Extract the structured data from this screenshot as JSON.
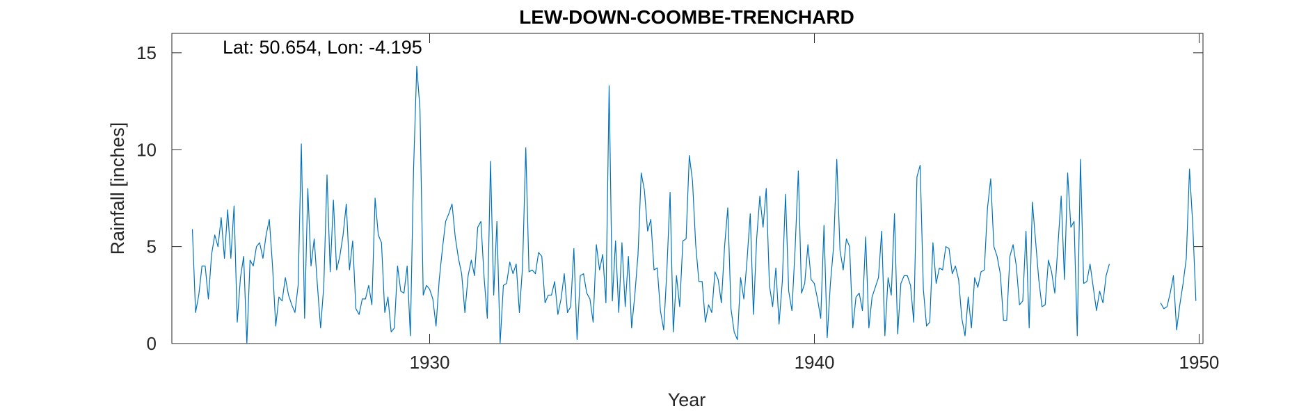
{
  "chart_data": {
    "type": "line",
    "title": "LEW-DOWN-COOMBE-TRENCHARD",
    "xlabel": "Year",
    "ylabel": "Rainfall [inches]",
    "annotation": "Lat: 50.654, Lon: -4.195",
    "xlim": [
      1923.3,
      1950.1
    ],
    "ylim": [
      0,
      16
    ],
    "xticks": [
      {
        "value": 1930,
        "label": "1930"
      },
      {
        "value": 1940,
        "label": "1940"
      },
      {
        "value": 1950,
        "label": "1950"
      }
    ],
    "yticks": [
      {
        "value": 0,
        "label": "0"
      },
      {
        "value": 5,
        "label": "5"
      },
      {
        "value": 10,
        "label": "10"
      },
      {
        "value": 15,
        "label": "15"
      }
    ],
    "grid": false,
    "line_color": "#0072BD",
    "series": [
      {
        "start_year": 1923.833,
        "step": 0.08333,
        "values": [
          5.9,
          1.6,
          2.5,
          4.0,
          4.0,
          2.3,
          4.6,
          5.6,
          5.0,
          6.5,
          4.4,
          6.9,
          4.4,
          7.1,
          1.1,
          3.4,
          4.5,
          0.0,
          4.3,
          4.0,
          5.0,
          5.2,
          4.4,
          5.6,
          6.4,
          4.0,
          0.9,
          2.4,
          2.2,
          3.4,
          2.5,
          2.0,
          1.6,
          3.0,
          10.3,
          1.3,
          8.0,
          4.0,
          5.4,
          3.0,
          0.8,
          3.0,
          8.7,
          3.7,
          7.4,
          3.8,
          4.5,
          5.6,
          7.2,
          3.8,
          5.3,
          1.8,
          1.5,
          2.3,
          2.3,
          3.0,
          2.0,
          7.5,
          5.6,
          5.2,
          1.6,
          2.4,
          0.6,
          0.8,
          4.0,
          2.7,
          2.6,
          4.0,
          0.4,
          9.0,
          14.3,
          12.1,
          2.5,
          3.0,
          2.8,
          2.3,
          0.9,
          3.3,
          4.9,
          6.3,
          6.7,
          7.2,
          5.5,
          4.4,
          3.6,
          1.6,
          3.5,
          4.3,
          3.5,
          6.0,
          6.3,
          3.4,
          1.3,
          9.4,
          2.5,
          6.3,
          0.0,
          3.0,
          3.1,
          4.2,
          3.6,
          4.1,
          1.6,
          4.0,
          10.1,
          3.7,
          3.8,
          3.6,
          4.7,
          4.5,
          2.1,
          2.5,
          2.5,
          3.2,
          1.5,
          2.3,
          3.6,
          1.6,
          1.9,
          4.9,
          0.2,
          3.5,
          3.6,
          2.6,
          2.3,
          1.1,
          5.1,
          3.8,
          4.6,
          2.1,
          13.3,
          2.2,
          5.3,
          1.6,
          5.2,
          1.9,
          4.5,
          0.8,
          2.5,
          4.6,
          8.8,
          7.9,
          5.8,
          6.4,
          3.8,
          3.9,
          1.7,
          0.7,
          3.8,
          7.8,
          0.6,
          3.5,
          1.9,
          5.3,
          5.4,
          9.7,
          8.4,
          5.1,
          3.2,
          3.2,
          1.1,
          2.0,
          1.6,
          3.7,
          3.3,
          2.1,
          5.0,
          7.0,
          1.8,
          0.6,
          0.2,
          3.4,
          2.3,
          4.3,
          6.7,
          1.5,
          5.4,
          7.6,
          6.0,
          8.0,
          3.0,
          1.9,
          3.9,
          1.0,
          3.2,
          7.7,
          2.7,
          1.7,
          4.9,
          8.9,
          2.6,
          3.1,
          5.1,
          3.3,
          3.1,
          2.3,
          1.3,
          6.1,
          0.3,
          3.1,
          5.0,
          9.5,
          4.8,
          3.8,
          5.4,
          5.0,
          0.8,
          2.4,
          2.6,
          1.7,
          5.5,
          0.8,
          2.4,
          2.9,
          3.4,
          5.8,
          0.4,
          3.4,
          2.5,
          6.7,
          0.5,
          3.1,
          3.5,
          3.5,
          3.0,
          1.1,
          8.6,
          9.2,
          2.8,
          0.9,
          1.1,
          5.2,
          3.1,
          3.9,
          3.8,
          5.0,
          4.9,
          3.6,
          4.0,
          3.3,
          1.3,
          0.4,
          2.4,
          0.8,
          3.4,
          2.9,
          3.7,
          3.8,
          7.0,
          8.5,
          5.0,
          4.5,
          3.6,
          1.2,
          1.2,
          4.5,
          5.1,
          4.0,
          2.0,
          2.2,
          5.8,
          0.8,
          7.3,
          5.3,
          3.3,
          1.9,
          2.0,
          4.3,
          3.7,
          2.6,
          5.1,
          7.6,
          3.3,
          8.8,
          6.0,
          6.3,
          0.4,
          9.5,
          3.1,
          3.2,
          4.1,
          2.9,
          1.7,
          2.7,
          2.1,
          3.5,
          4.1,
          null,
          null,
          null,
          null,
          null,
          null,
          null,
          null,
          null,
          null,
          null,
          null,
          null,
          null,
          null,
          2.1,
          1.8,
          1.9,
          2.6,
          3.5,
          0.7,
          2.0,
          3.1,
          4.4,
          9.0,
          6.2,
          2.2
        ]
      }
    ]
  }
}
